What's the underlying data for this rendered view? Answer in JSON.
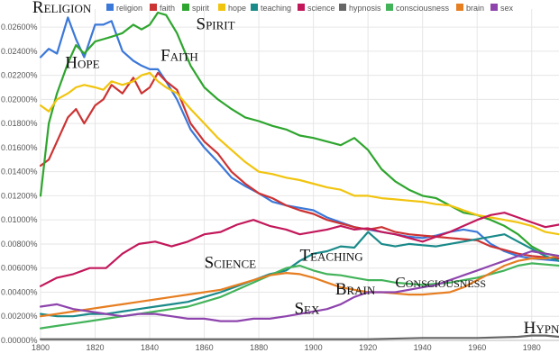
{
  "chart_data": {
    "type": "line",
    "title": "",
    "xlabel": "",
    "ylabel": "",
    "xlim": [
      1800,
      1990
    ],
    "ylim": [
      0.0,
      0.0275
    ],
    "grid": true,
    "legend_position": "top",
    "x_ticks": [
      1800,
      1820,
      1840,
      1860,
      1880,
      1900,
      1920,
      1940,
      1960,
      1980
    ],
    "x_tick_labels": [
      "1800",
      "1820",
      "1840",
      "1860",
      "1880",
      "1900",
      "1920",
      "1940",
      "1960",
      "1980"
    ],
    "y_ticks": [
      0.0,
      0.002,
      0.004,
      0.006,
      0.008,
      0.01,
      0.012,
      0.014,
      0.016,
      0.018,
      0.02,
      0.022,
      0.024,
      0.026
    ],
    "y_tick_labels": [
      "0.00000%",
      "0.00200%",
      "0.00400%",
      "0.00600%",
      "0.00800%",
      "0.01000%",
      "0.01200%",
      "0.01400%",
      "0.01600%",
      "0.01800%",
      "0.02000%",
      "0.02200%",
      "0.02400%",
      "0.02600%"
    ],
    "series": [
      {
        "name": "religion",
        "color": "#3b78d8",
        "x": [
          1800,
          1803,
          1806,
          1810,
          1813,
          1816,
          1820,
          1823,
          1826,
          1830,
          1834,
          1837,
          1840,
          1843,
          1846,
          1850,
          1855,
          1860,
          1865,
          1870,
          1875,
          1880,
          1885,
          1890,
          1895,
          1900,
          1905,
          1910,
          1915,
          1920,
          1925,
          1930,
          1935,
          1940,
          1945,
          1950,
          1955,
          1960,
          1965,
          1970,
          1975,
          1980,
          1985,
          1990
        ],
        "values": [
          0.0235,
          0.0242,
          0.0238,
          0.0268,
          0.025,
          0.0235,
          0.0262,
          0.0262,
          0.0265,
          0.024,
          0.0232,
          0.0228,
          0.0225,
          0.0225,
          0.0215,
          0.02,
          0.0175,
          0.016,
          0.0148,
          0.0135,
          0.0128,
          0.0122,
          0.0115,
          0.0112,
          0.011,
          0.0108,
          0.0102,
          0.0098,
          0.0094,
          0.0092,
          0.009,
          0.0088,
          0.0086,
          0.0085,
          0.0087,
          0.009,
          0.0092,
          0.009,
          0.008,
          0.0074,
          0.007,
          0.0068,
          0.0067,
          0.0066
        ]
      },
      {
        "name": "faith",
        "color": "#cc3333",
        "x": [
          1800,
          1803,
          1806,
          1810,
          1813,
          1816,
          1820,
          1823,
          1826,
          1830,
          1834,
          1837,
          1840,
          1843,
          1846,
          1850,
          1855,
          1860,
          1865,
          1870,
          1875,
          1880,
          1885,
          1890,
          1895,
          1900,
          1905,
          1910,
          1915,
          1920,
          1925,
          1930,
          1935,
          1940,
          1945,
          1950,
          1955,
          1960,
          1965,
          1970,
          1975,
          1980,
          1985,
          1990
        ],
        "values": [
          0.0145,
          0.015,
          0.0165,
          0.0185,
          0.0192,
          0.018,
          0.0195,
          0.02,
          0.0212,
          0.0205,
          0.0218,
          0.0205,
          0.021,
          0.0222,
          0.0215,
          0.0208,
          0.018,
          0.0165,
          0.0155,
          0.014,
          0.013,
          0.0122,
          0.0118,
          0.0112,
          0.0108,
          0.0105,
          0.01,
          0.0097,
          0.0094,
          0.0092,
          0.0094,
          0.009,
          0.0088,
          0.0087,
          0.0086,
          0.0085,
          0.0084,
          0.0083,
          0.0078,
          0.0075,
          0.0072,
          0.007,
          0.0069,
          0.0068
        ]
      },
      {
        "name": "spirit",
        "color": "#2ea52e",
        "x": [
          1800,
          1803,
          1806,
          1810,
          1813,
          1816,
          1820,
          1823,
          1826,
          1830,
          1834,
          1837,
          1840,
          1843,
          1846,
          1850,
          1855,
          1860,
          1865,
          1870,
          1875,
          1880,
          1885,
          1890,
          1895,
          1900,
          1905,
          1910,
          1915,
          1920,
          1925,
          1930,
          1935,
          1940,
          1945,
          1950,
          1955,
          1960,
          1965,
          1970,
          1975,
          1980,
          1985,
          1990
        ],
        "values": [
          0.012,
          0.018,
          0.0205,
          0.023,
          0.0245,
          0.0238,
          0.0248,
          0.025,
          0.0252,
          0.0255,
          0.0262,
          0.0258,
          0.0262,
          0.0272,
          0.027,
          0.0255,
          0.0228,
          0.021,
          0.02,
          0.0192,
          0.0185,
          0.0182,
          0.0178,
          0.0175,
          0.017,
          0.0168,
          0.0165,
          0.0162,
          0.0168,
          0.0158,
          0.0142,
          0.0132,
          0.0125,
          0.012,
          0.0118,
          0.0112,
          0.0106,
          0.0104,
          0.01,
          0.0095,
          0.0088,
          0.0078,
          0.0072,
          0.007
        ]
      },
      {
        "name": "hope",
        "color": "#f1c40f",
        "x": [
          1800,
          1803,
          1806,
          1810,
          1813,
          1816,
          1820,
          1823,
          1826,
          1830,
          1834,
          1837,
          1840,
          1843,
          1846,
          1850,
          1855,
          1860,
          1865,
          1870,
          1875,
          1880,
          1885,
          1890,
          1895,
          1900,
          1905,
          1910,
          1915,
          1920,
          1925,
          1930,
          1935,
          1940,
          1945,
          1950,
          1955,
          1960,
          1965,
          1970,
          1975,
          1980,
          1985,
          1990
        ],
        "values": [
          0.0195,
          0.019,
          0.02,
          0.0205,
          0.021,
          0.0212,
          0.021,
          0.0208,
          0.0215,
          0.0212,
          0.0215,
          0.022,
          0.0222,
          0.0215,
          0.021,
          0.0205,
          0.0192,
          0.018,
          0.0168,
          0.0158,
          0.0148,
          0.014,
          0.0138,
          0.0135,
          0.0133,
          0.013,
          0.0127,
          0.0125,
          0.012,
          0.012,
          0.0118,
          0.0117,
          0.0116,
          0.0115,
          0.0113,
          0.0112,
          0.0108,
          0.0104,
          0.0102,
          0.01,
          0.0098,
          0.0095,
          0.009,
          0.0088
        ]
      },
      {
        "name": "teaching",
        "color": "#1b8a8a",
        "x": [
          1800,
          1806,
          1812,
          1818,
          1824,
          1830,
          1836,
          1842,
          1848,
          1854,
          1860,
          1866,
          1872,
          1878,
          1884,
          1890,
          1895,
          1900,
          1905,
          1910,
          1915,
          1920,
          1925,
          1930,
          1935,
          1940,
          1945,
          1950,
          1955,
          1960,
          1965,
          1970,
          1975,
          1980,
          1985,
          1990
        ],
        "values": [
          0.0022,
          0.002,
          0.002,
          0.0022,
          0.0022,
          0.0024,
          0.0026,
          0.0028,
          0.003,
          0.0032,
          0.0036,
          0.004,
          0.0045,
          0.005,
          0.0055,
          0.0058,
          0.0066,
          0.0072,
          0.0074,
          0.0078,
          0.0077,
          0.009,
          0.008,
          0.0078,
          0.008,
          0.0079,
          0.0078,
          0.008,
          0.0082,
          0.0084,
          0.0086,
          0.0088,
          0.0082,
          0.0076,
          0.007,
          0.0066
        ]
      },
      {
        "name": "science",
        "color": "#c2185b",
        "x": [
          1800,
          1806,
          1812,
          1818,
          1824,
          1830,
          1836,
          1842,
          1848,
          1854,
          1860,
          1866,
          1872,
          1878,
          1884,
          1890,
          1895,
          1900,
          1905,
          1910,
          1915,
          1920,
          1925,
          1930,
          1935,
          1940,
          1945,
          1950,
          1955,
          1960,
          1965,
          1970,
          1975,
          1980,
          1985,
          1990
        ],
        "values": [
          0.0045,
          0.0052,
          0.0055,
          0.006,
          0.006,
          0.0072,
          0.008,
          0.0082,
          0.0078,
          0.0082,
          0.0088,
          0.009,
          0.0096,
          0.01,
          0.0095,
          0.0092,
          0.0088,
          0.009,
          0.0092,
          0.0095,
          0.0092,
          0.0093,
          0.009,
          0.0088,
          0.0085,
          0.0082,
          0.0086,
          0.009,
          0.0095,
          0.01,
          0.0104,
          0.0106,
          0.0102,
          0.0098,
          0.0094,
          0.0096
        ]
      },
      {
        "name": "hypnosis",
        "color": "#666666",
        "x": [
          1800,
          1820,
          1840,
          1860,
          1880,
          1900,
          1920,
          1940,
          1960,
          1975,
          1980,
          1985,
          1990
        ],
        "values": [
          0.0001,
          0.0001,
          0.0001,
          0.0001,
          0.0001,
          0.0001,
          0.0001,
          0.0002,
          0.0002,
          0.0003,
          0.0004,
          0.0004,
          0.0003
        ]
      },
      {
        "name": "consciousness",
        "color": "#43b35a",
        "x": [
          1800,
          1806,
          1812,
          1818,
          1824,
          1830,
          1836,
          1842,
          1848,
          1854,
          1860,
          1866,
          1872,
          1878,
          1884,
          1890,
          1895,
          1900,
          1905,
          1910,
          1915,
          1920,
          1925,
          1930,
          1935,
          1940,
          1945,
          1950,
          1955,
          1960,
          1965,
          1970,
          1975,
          1980,
          1985,
          1990
        ],
        "values": [
          0.001,
          0.0012,
          0.0014,
          0.0016,
          0.0018,
          0.002,
          0.0022,
          0.0024,
          0.0026,
          0.0028,
          0.0032,
          0.0036,
          0.0042,
          0.0048,
          0.0054,
          0.006,
          0.0062,
          0.0058,
          0.0055,
          0.0054,
          0.0052,
          0.005,
          0.005,
          0.0048,
          0.0047,
          0.0046,
          0.0047,
          0.0048,
          0.005,
          0.0052,
          0.0055,
          0.0058,
          0.0062,
          0.0064,
          0.0063,
          0.0062
        ]
      },
      {
        "name": "brain",
        "color": "#e67e22",
        "x": [
          1800,
          1806,
          1812,
          1818,
          1824,
          1830,
          1836,
          1842,
          1848,
          1854,
          1860,
          1866,
          1872,
          1878,
          1884,
          1890,
          1895,
          1900,
          1905,
          1910,
          1915,
          1920,
          1925,
          1930,
          1935,
          1940,
          1945,
          1950,
          1955,
          1960,
          1965,
          1970,
          1975,
          1980,
          1985,
          1990
        ],
        "values": [
          0.002,
          0.0022,
          0.0024,
          0.0026,
          0.0028,
          0.003,
          0.0032,
          0.0034,
          0.0036,
          0.0038,
          0.004,
          0.0042,
          0.0046,
          0.005,
          0.0054,
          0.0056,
          0.0055,
          0.0052,
          0.0048,
          0.0044,
          0.0042,
          0.004,
          0.004,
          0.0039,
          0.0038,
          0.0038,
          0.0039,
          0.004,
          0.0044,
          0.005,
          0.0056,
          0.0062,
          0.0066,
          0.0068,
          0.0068,
          0.007
        ]
      },
      {
        "name": "sex",
        "color": "#8e44ad",
        "x": [
          1800,
          1806,
          1812,
          1818,
          1824,
          1830,
          1836,
          1842,
          1848,
          1854,
          1860,
          1866,
          1872,
          1878,
          1884,
          1890,
          1895,
          1900,
          1905,
          1910,
          1915,
          1920,
          1925,
          1930,
          1935,
          1940,
          1945,
          1950,
          1955,
          1960,
          1965,
          1970,
          1975,
          1980,
          1985,
          1990
        ],
        "values": [
          0.0028,
          0.003,
          0.0026,
          0.0024,
          0.0022,
          0.002,
          0.0022,
          0.0022,
          0.002,
          0.0018,
          0.0018,
          0.0016,
          0.0016,
          0.0018,
          0.0018,
          0.002,
          0.0022,
          0.0024,
          0.0026,
          0.003,
          0.0036,
          0.004,
          0.004,
          0.004,
          0.0042,
          0.0044,
          0.0046,
          0.005,
          0.0054,
          0.0058,
          0.0062,
          0.0066,
          0.007,
          0.0074,
          0.0072,
          0.007
        ]
      }
    ],
    "annotations": [
      {
        "text": "Religion",
        "x": 1797,
        "y": 0.0272,
        "size": 19
      },
      {
        "text": "Hope",
        "x": 1809,
        "y": 0.0226,
        "size": 19
      },
      {
        "text": "Faith",
        "x": 1844,
        "y": 0.0232,
        "size": 19
      },
      {
        "text": "Spirit",
        "x": 1857,
        "y": 0.0258,
        "size": 19
      },
      {
        "text": "Science",
        "x": 1860,
        "y": 0.006,
        "size": 19
      },
      {
        "text": "Teaching",
        "x": 1895,
        "y": 0.0066,
        "size": 19
      },
      {
        "text": "Brain",
        "x": 1908,
        "y": 0.0038,
        "size": 19
      },
      {
        "text": "Sex",
        "x": 1893,
        "y": 0.0022,
        "size": 19
      },
      {
        "text": "Consciousness",
        "x": 1930,
        "y": 0.0044,
        "size": 17
      },
      {
        "text": "Hypno",
        "x": 1977,
        "y": 0.0006,
        "size": 19
      }
    ]
  }
}
